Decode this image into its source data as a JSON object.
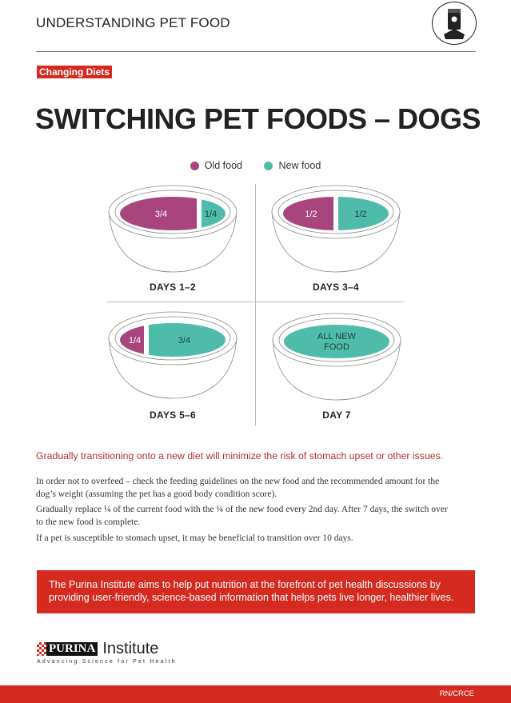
{
  "header": {
    "kicker": "UNDERSTANDING PET FOOD",
    "icon": "pet-food-bag-icon",
    "category_tag": "Changing Diets"
  },
  "title": "SWITCHING PET FOODS – DOGS",
  "colors": {
    "old_food": "#a8457d",
    "new_food": "#4fbcaa",
    "brand_red": "#d42a20"
  },
  "legend": [
    {
      "label": "Old food"
    },
    {
      "label": "New food"
    }
  ],
  "bowls": [
    {
      "label": "DAYS 1–2",
      "old_fraction": 0.75,
      "new_fraction": 0.25,
      "old_text": "3/4",
      "new_text": "1/4"
    },
    {
      "label": "DAYS 3–4",
      "old_fraction": 0.5,
      "new_fraction": 0.5,
      "old_text": "1/2",
      "new_text": "1/2"
    },
    {
      "label": "DAYS 5–6",
      "old_fraction": 0.25,
      "new_fraction": 0.75,
      "old_text": "1/4",
      "new_text": "3/4"
    },
    {
      "label": "DAY 7",
      "old_fraction": 0,
      "new_fraction": 1,
      "all_line1": "ALL NEW",
      "all_line2": "FOOD"
    }
  ],
  "tagline": "Gradually transitioning onto a new diet will minimize the risk of stomach upset or other issues.",
  "paragraphs": [
    "In order not to overfeed – check the feeding guidelines on the new food and the recommended amount for the dog’s weight (assuming the pet has a good body condition score).",
    "Gradually replace ¼ of the current food with the ¼ of the new food every 2nd day. After 7 days, the switch over to the new food is complete.",
    "If a pet is susceptible to stomach upset, it may be beneficial to transition over 10 days."
  ],
  "banner": "The Purina Institute aims to help put nutrition at the forefront of pet health discussions by providing user-friendly, science-based information that helps pets live longer, healthier lives.",
  "logo": {
    "brand": "PURINA",
    "name": "Institute",
    "slogan": "Advancing Science for Pet Health"
  },
  "footer": {
    "code": "RN/CRCE"
  }
}
